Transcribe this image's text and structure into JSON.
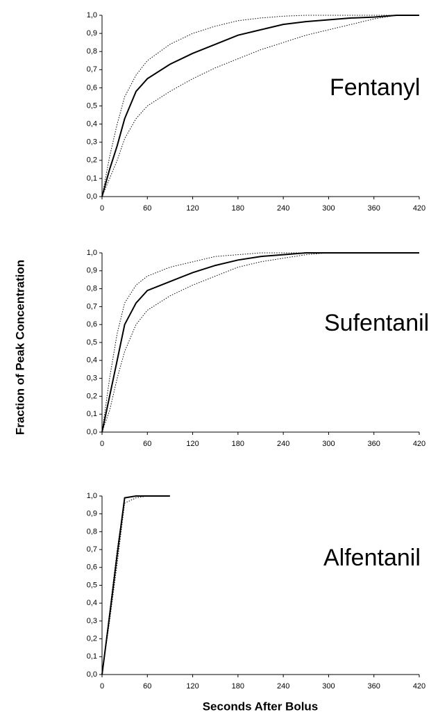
{
  "figure": {
    "ylabel": "Fraction of Peak Concentration",
    "xlabel": "Seconds After Bolus"
  },
  "chart_data": [
    {
      "type": "line",
      "title": "Fentanyl",
      "x": [
        0,
        10,
        20,
        30,
        45,
        60,
        90,
        120,
        150,
        180,
        210,
        240,
        270,
        300,
        330,
        360,
        390,
        420
      ],
      "series": [
        {
          "color": "#000000",
          "style": "solid",
          "values": [
            0,
            0.15,
            0.28,
            0.43,
            0.58,
            0.65,
            0.73,
            0.79,
            0.84,
            0.89,
            0.92,
            0.95,
            0.965,
            0.975,
            0.985,
            0.99,
            1,
            1
          ]
        },
        {
          "color": "#000000",
          "style": "dotted",
          "values": [
            0,
            0.22,
            0.4,
            0.55,
            0.67,
            0.75,
            0.84,
            0.9,
            0.94,
            0.97,
            0.985,
            0.995,
            1,
            1,
            1,
            1,
            1,
            1
          ]
        },
        {
          "color": "#000000",
          "style": "dotted",
          "values": [
            0,
            0.1,
            0.2,
            0.32,
            0.43,
            0.5,
            0.58,
            0.65,
            0.71,
            0.76,
            0.81,
            0.85,
            0.89,
            0.92,
            0.95,
            0.98,
            1,
            1
          ]
        }
      ],
      "xlim": [
        0,
        420
      ],
      "xticks": [
        0,
        60,
        120,
        180,
        240,
        300,
        360,
        420
      ],
      "ylim": [
        0,
        1
      ],
      "yticks": [
        {
          "value": 0,
          "label": "0,0"
        },
        {
          "value": 0.1,
          "label": "0,1"
        },
        {
          "value": 0.2,
          "label": "0,2"
        },
        {
          "value": 0.3,
          "label": "0,3"
        },
        {
          "value": 0.4,
          "label": "0,4"
        },
        {
          "value": 0.5,
          "label": "0,5"
        },
        {
          "value": 0.6,
          "label": "0,6"
        },
        {
          "value": 0.7,
          "label": "0,7"
        },
        {
          "value": 0.8,
          "label": "0,8"
        },
        {
          "value": 0.9,
          "label": "0,9"
        },
        {
          "value": 1,
          "label": "1,0"
        }
      ]
    },
    {
      "type": "line",
      "title": "Sufentanil",
      "x": [
        0,
        10,
        20,
        30,
        45,
        60,
        90,
        120,
        150,
        180,
        210,
        240,
        270,
        300,
        330,
        360,
        390,
        420
      ],
      "series": [
        {
          "color": "#000000",
          "style": "solid",
          "values": [
            0,
            0.2,
            0.4,
            0.6,
            0.72,
            0.79,
            0.84,
            0.89,
            0.93,
            0.96,
            0.98,
            0.99,
            1,
            1,
            1,
            1,
            1,
            1
          ]
        },
        {
          "color": "#000000",
          "style": "dotted",
          "values": [
            0,
            0.3,
            0.55,
            0.72,
            0.82,
            0.87,
            0.92,
            0.95,
            0.98,
            0.99,
            1,
            1,
            1,
            1,
            1,
            1,
            1,
            1
          ]
        },
        {
          "color": "#000000",
          "style": "dotted",
          "values": [
            0,
            0.12,
            0.3,
            0.45,
            0.6,
            0.68,
            0.76,
            0.82,
            0.87,
            0.92,
            0.95,
            0.97,
            0.99,
            1,
            1,
            1,
            1,
            1
          ]
        }
      ],
      "xlim": [
        0,
        420
      ],
      "xticks": [
        0,
        60,
        120,
        180,
        240,
        300,
        360,
        420
      ],
      "ylim": [
        0,
        1
      ],
      "yticks": [
        {
          "value": 0,
          "label": "0,0"
        },
        {
          "value": 0.1,
          "label": "0,1"
        },
        {
          "value": 0.2,
          "label": "0,2"
        },
        {
          "value": 0.3,
          "label": "0,3"
        },
        {
          "value": 0.4,
          "label": "0,4"
        },
        {
          "value": 0.5,
          "label": "0,5"
        },
        {
          "value": 0.6,
          "label": "0,6"
        },
        {
          "value": 0.7,
          "label": "0,7"
        },
        {
          "value": 0.8,
          "label": "0,8"
        },
        {
          "value": 0.9,
          "label": "0,9"
        },
        {
          "value": 1,
          "label": "1,0"
        }
      ]
    },
    {
      "type": "line",
      "title": "Alfentanil",
      "x": [
        0,
        10,
        20,
        30,
        45,
        60,
        90
      ],
      "series": [
        {
          "color": "#000000",
          "style": "solid",
          "values": [
            0,
            0.33,
            0.67,
            0.99,
            1,
            1,
            1
          ]
        },
        {
          "color": "#000000",
          "style": "dotted",
          "values": [
            0,
            0.35,
            0.7,
            0.99,
            1,
            1,
            null
          ]
        },
        {
          "color": "#000000",
          "style": "dotted",
          "values": [
            0,
            0.3,
            0.62,
            0.96,
            0.99,
            1,
            null
          ]
        }
      ],
      "xlim": [
        0,
        420
      ],
      "xticks": [
        0,
        60,
        120,
        180,
        240,
        300,
        360,
        420
      ],
      "ylim": [
        0,
        1
      ],
      "yticks": [
        {
          "value": 0,
          "label": "0,0"
        },
        {
          "value": 0.1,
          "label": "0,1"
        },
        {
          "value": 0.2,
          "label": "0,2"
        },
        {
          "value": 0.3,
          "label": "0,3"
        },
        {
          "value": 0.4,
          "label": "0,4"
        },
        {
          "value": 0.5,
          "label": "0,5"
        },
        {
          "value": 0.6,
          "label": "0,6"
        },
        {
          "value": 0.7,
          "label": "0,7"
        },
        {
          "value": 0.8,
          "label": "0,8"
        },
        {
          "value": 0.9,
          "label": "0,9"
        },
        {
          "value": 1,
          "label": "1,0"
        }
      ]
    }
  ]
}
